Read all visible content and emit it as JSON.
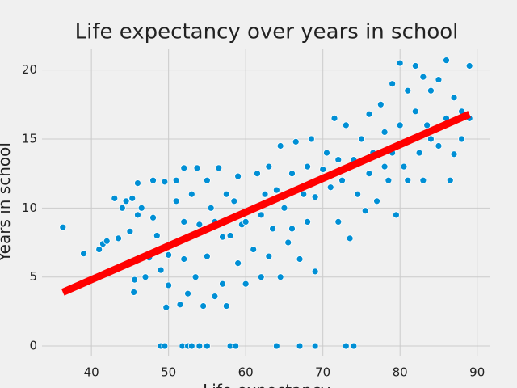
{
  "chart_data": {
    "type": "scatter",
    "title": "Life expectancy over years in school",
    "x_label": "Life expectancy",
    "y_label": "Years in school",
    "xlim": [
      33.6,
      91.6
    ],
    "ylim": [
      -0.7,
      21.5
    ],
    "xticks": [
      40,
      50,
      60,
      70,
      80,
      90
    ],
    "yticks": [
      0,
      5,
      10,
      15,
      20
    ],
    "grid": true,
    "series": [
      {
        "color": "#008fd5",
        "x": [
          36.3,
          39,
          41,
          41.5,
          42,
          43,
          43.5,
          44,
          44.5,
          45,
          45.3,
          45.5,
          45.6,
          46,
          46,
          46.5,
          47,
          47.5,
          48,
          48,
          48.5,
          49,
          49,
          49.5,
          49.7,
          49.5,
          50,
          50,
          51,
          51,
          51.5,
          51.8,
          52,
          52,
          52,
          52.5,
          52.5,
          53,
          53,
          53.5,
          53.7,
          54,
          54,
          54.5,
          55,
          55,
          55,
          55.5,
          56,
          56,
          56.5,
          57,
          57,
          57.5,
          57.5,
          58,
          58,
          58.5,
          58.7,
          59,
          59,
          59.5,
          60,
          60,
          61,
          61.5,
          62,
          62,
          62.5,
          63,
          63,
          63.5,
          64,
          64,
          64.5,
          64.5,
          65,
          65.5,
          66,
          66,
          66.5,
          67,
          67,
          67.5,
          68,
          68,
          68.5,
          69,
          69,
          69,
          70,
          70.5,
          71,
          71.5,
          72,
          72,
          72.5,
          73,
          73,
          73.5,
          74,
          74,
          74.5,
          75,
          75.5,
          76,
          76,
          76.5,
          77,
          77.5,
          78,
          78,
          78.5,
          79,
          79,
          79.5,
          80,
          80,
          80.5,
          81,
          81,
          81.5,
          82,
          82,
          82.5,
          83,
          83,
          83.5,
          84,
          84,
          85,
          85,
          86,
          86,
          86.5,
          87,
          87,
          88,
          88,
          89,
          89
        ],
        "values": [
          8.6,
          6.7,
          7,
          7.4,
          7.6,
          10.7,
          7.8,
          10,
          10.5,
          8.3,
          10.7,
          3.9,
          4.8,
          9.5,
          11.8,
          10,
          5,
          6.4,
          9.3,
          12,
          8,
          0,
          5.5,
          11.9,
          2.8,
          0,
          6.6,
          4.4,
          10.5,
          12,
          3,
          0,
          6.3,
          9,
          12.9,
          0,
          3.8,
          11,
          0,
          5,
          12.9,
          8.8,
          0,
          2.9,
          12,
          6.5,
          0,
          10,
          9,
          3.6,
          12.9,
          7.9,
          4.5,
          11,
          2.9,
          8,
          0,
          10.5,
          0,
          12.3,
          6,
          8.8,
          9,
          4.5,
          7,
          12.5,
          5,
          9.5,
          11,
          6.5,
          13,
          8.5,
          0,
          11.3,
          5,
          14.5,
          10,
          7.5,
          12.5,
          8.5,
          14.8,
          0,
          6.3,
          11,
          13,
          9,
          15,
          0,
          10.8,
          5.4,
          12.8,
          14,
          11.5,
          16.5,
          9,
          13.5,
          12,
          0,
          16,
          7.8,
          0,
          13.5,
          11,
          15,
          9.8,
          12.5,
          16.8,
          14,
          10.5,
          17.5,
          13,
          15.5,
          12,
          19,
          14,
          9.5,
          20.5,
          16,
          13,
          18.5,
          12,
          15,
          20.3,
          17,
          14,
          19.5,
          12,
          16,
          18.5,
          15,
          19.3,
          14.5,
          20.7,
          16.5,
          12,
          18,
          13.9,
          17,
          15,
          20.3,
          16.5
        ]
      }
    ],
    "fit": {
      "color": "#ff0000",
      "x": [
        36.3,
        89
      ],
      "y": [
        3.9,
        16.8
      ]
    }
  }
}
